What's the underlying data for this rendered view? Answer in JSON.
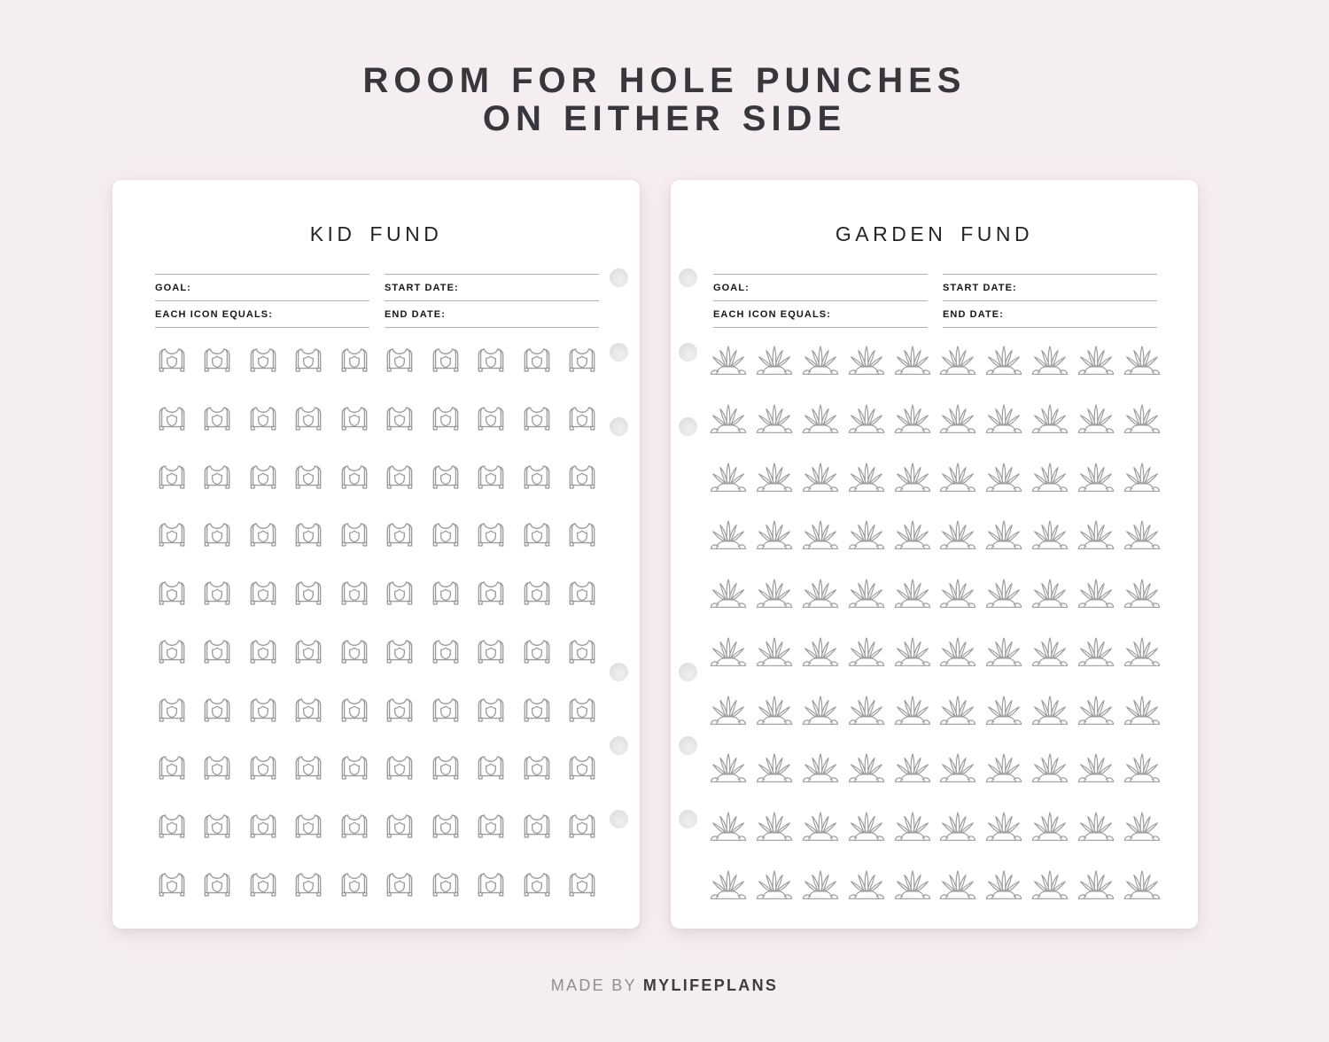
{
  "header": {
    "title_lines": [
      "ROOM FOR HOLE PUNCHES",
      "ON EITHER SIDE"
    ]
  },
  "pages": [
    {
      "title": "KID FUND",
      "icon": "sweater",
      "icon_name": "sweater-icon",
      "fields": [
        {
          "label": "GOAL:"
        },
        {
          "label": "EACH ICON EQUALS:"
        },
        {
          "label": "START DATE:"
        },
        {
          "label": "END DATE:"
        }
      ],
      "grid": {
        "rows": 10,
        "cols": 10
      },
      "hole_punches": {
        "count": 6,
        "side": "right"
      }
    },
    {
      "title": "GARDEN FUND",
      "icon": "plant",
      "icon_name": "plant-icon",
      "fields": [
        {
          "label": "GOAL:"
        },
        {
          "label": "EACH ICON EQUALS:"
        },
        {
          "label": "START DATE:"
        },
        {
          "label": "END DATE:"
        }
      ],
      "grid": {
        "rows": 10,
        "cols": 10
      },
      "hole_punches": {
        "count": 6,
        "side": "left"
      }
    }
  ],
  "footer": {
    "made_by": "MADE BY",
    "brand": "MYLIFEPLANS"
  },
  "colors": {
    "background": "#f5eef0",
    "page": "#ffffff",
    "heading": "#37363c",
    "page_title": "#242428",
    "label": "#161616",
    "line": "#b2b2b2",
    "icon_outline": "#9c9c9c",
    "hole_punch": "#e0e0e0",
    "footer_muted": "#918d90",
    "footer_brand": "#3e3c41"
  }
}
